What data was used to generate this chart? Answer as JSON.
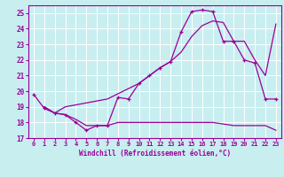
{
  "xlabel": "Windchill (Refroidissement éolien,°C)",
  "bg_color": "#c8eef0",
  "grid_color": "#b0d8da",
  "line_color": "#990099",
  "xlim": [
    -0.5,
    23.5
  ],
  "ylim": [
    17,
    25.5
  ],
  "xticks": [
    0,
    1,
    2,
    3,
    4,
    5,
    6,
    7,
    8,
    9,
    10,
    11,
    12,
    13,
    14,
    15,
    16,
    17,
    18,
    19,
    20,
    21,
    22,
    23
  ],
  "yticks": [
    17,
    18,
    19,
    20,
    21,
    22,
    23,
    24,
    25
  ],
  "line1_x": [
    0,
    1,
    2,
    3,
    4,
    5,
    6,
    7,
    8,
    9,
    10,
    11,
    12,
    13,
    14,
    15,
    16,
    17,
    18,
    19,
    20,
    21,
    22,
    23
  ],
  "line1_y": [
    19.8,
    18.9,
    18.6,
    18.5,
    18.0,
    17.5,
    17.8,
    17.8,
    19.6,
    19.5,
    20.5,
    21.0,
    21.5,
    21.9,
    23.8,
    25.1,
    25.2,
    25.1,
    23.2,
    23.2,
    22.0,
    21.8,
    19.5,
    19.5
  ],
  "line2_x": [
    1,
    2,
    3,
    7,
    10,
    11,
    12,
    13,
    14,
    15,
    16,
    17,
    18,
    19,
    20,
    21,
    22,
    23
  ],
  "line2_y": [
    19.0,
    18.6,
    19.0,
    19.5,
    20.5,
    21.0,
    21.5,
    21.9,
    22.5,
    23.5,
    24.2,
    24.5,
    24.4,
    23.2,
    23.2,
    22.0,
    21.0,
    24.3
  ],
  "line3_x": [
    1,
    2,
    3,
    4,
    5,
    6,
    7,
    8,
    9,
    10,
    11,
    12,
    13,
    14,
    15,
    16,
    17,
    18,
    19,
    20,
    21,
    22,
    23
  ],
  "line3_y": [
    19.0,
    18.6,
    18.5,
    18.2,
    17.8,
    17.8,
    17.8,
    18.0,
    18.0,
    18.0,
    18.0,
    18.0,
    18.0,
    18.0,
    18.0,
    18.0,
    18.0,
    17.9,
    17.8,
    17.8,
    17.8,
    17.8,
    17.5
  ]
}
